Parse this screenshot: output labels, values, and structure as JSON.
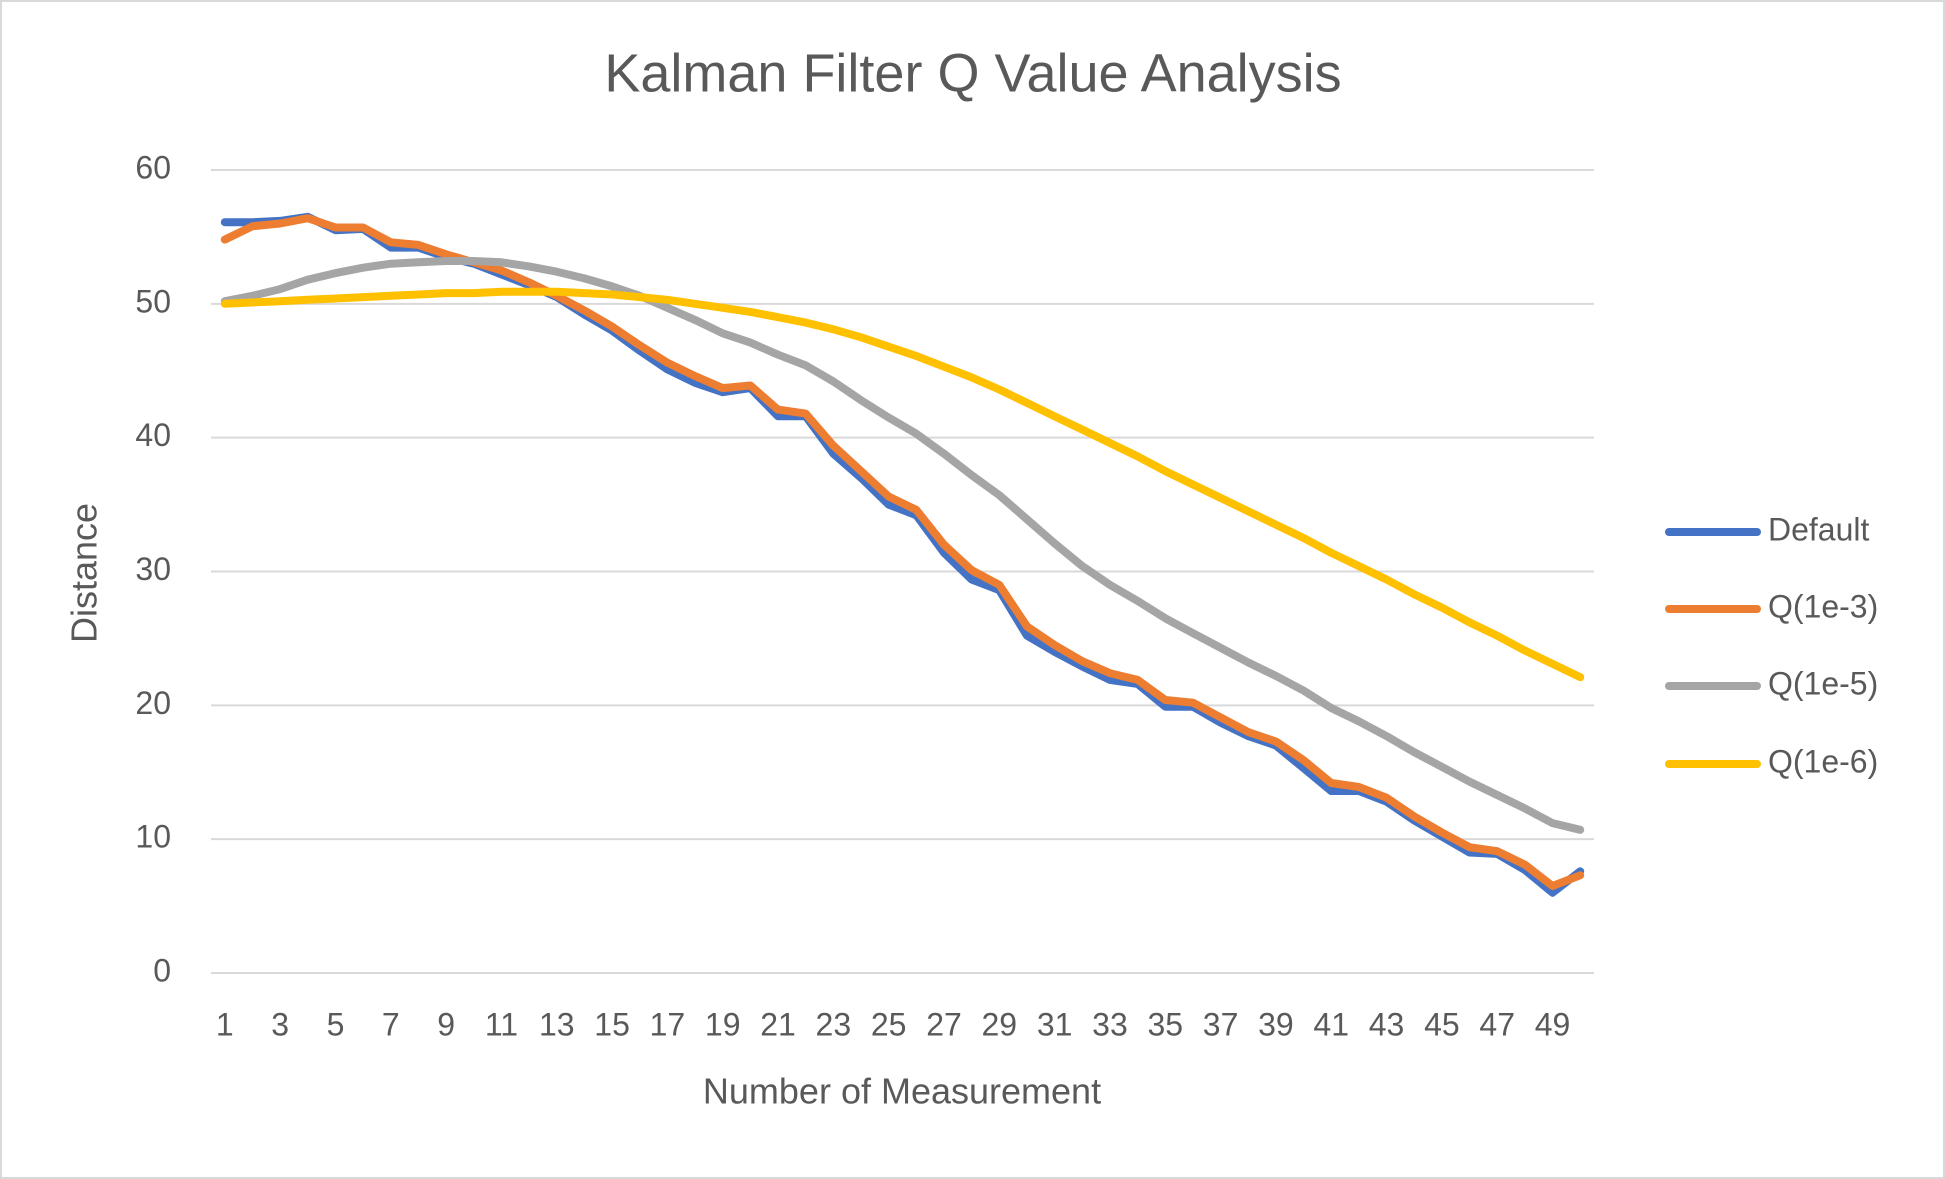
{
  "chart_data": {
    "type": "line",
    "title": "Kalman Filter Q Value Analysis",
    "x_label": "Number of Measurement",
    "y_label": "Distance",
    "categories": [
      1,
      null,
      3,
      null,
      5,
      null,
      7,
      null,
      9,
      null,
      11,
      null,
      13,
      null,
      15,
      null,
      17,
      null,
      19,
      null,
      21,
      null,
      23,
      null,
      25,
      null,
      27,
      null,
      29,
      null,
      31,
      null,
      33,
      null,
      35,
      null,
      37,
      null,
      39,
      null,
      41,
      null,
      43,
      null,
      45,
      null,
      47,
      null,
      49,
      null
    ],
    "ylim": [
      0,
      60
    ],
    "yticks": [
      0,
      10,
      20,
      30,
      40,
      50,
      60
    ],
    "grid": true,
    "legend": "right",
    "series": [
      {
        "name": "Default",
        "color": "#4472c4",
        "values": [
          56.1,
          56.1,
          56.2,
          56.5,
          55.5,
          55.6,
          54.2,
          54.2,
          53.5,
          53,
          52.2,
          51.4,
          50.5,
          49.2,
          48,
          46.5,
          45.1,
          44.1,
          43.4,
          43.7,
          41.6,
          41.6,
          38.8,
          37,
          35,
          34.2,
          31.4,
          29.4,
          28.6,
          25.2,
          24,
          22.9,
          21.9,
          21.6,
          19.9,
          19.9,
          18.7,
          17.7,
          17,
          15.3,
          13.6,
          13.6,
          12.8,
          11.4,
          10.2,
          9,
          8.9,
          7.7,
          6,
          7.6
        ]
      },
      {
        "name": "Q(1e-3)",
        "color": "#ed7d31",
        "values": [
          54.8,
          55.8,
          56,
          56.4,
          55.7,
          55.7,
          54.6,
          54.4,
          53.7,
          53.1,
          52.5,
          51.6,
          50.6,
          49.5,
          48.3,
          46.9,
          45.6,
          44.6,
          43.7,
          43.9,
          42.1,
          41.8,
          39.4,
          37.5,
          35.6,
          34.6,
          32,
          30.1,
          29,
          25.9,
          24.5,
          23.3,
          22.4,
          21.9,
          20.4,
          20.2,
          19.1,
          18,
          17.3,
          15.9,
          14.2,
          13.9,
          13.1,
          11.7,
          10.5,
          9.4,
          9.1,
          8.1,
          6.5,
          7.3
        ]
      },
      {
        "name": "Q(1e-5)",
        "color": "#a5a5a5",
        "values": [
          50.2,
          50.6,
          51.1,
          51.8,
          52.3,
          52.7,
          53,
          53.1,
          53.2,
          53.2,
          53.1,
          52.8,
          52.4,
          51.9,
          51.3,
          50.6,
          49.7,
          48.8,
          47.8,
          47.1,
          46.2,
          45.4,
          44.2,
          42.8,
          41.5,
          40.3,
          38.8,
          37.2,
          35.7,
          33.9,
          32.1,
          30.4,
          29,
          27.8,
          26.5,
          25.4,
          24.3,
          23.2,
          22.2,
          21.1,
          19.8,
          18.8,
          17.7,
          16.5,
          15.4,
          14.3,
          13.3,
          12.3,
          11.2,
          10.7
        ]
      },
      {
        "name": "Q(1e-6)",
        "color": "#ffc000",
        "values": [
          50,
          50.1,
          50.2,
          50.3,
          50.4,
          50.5,
          50.6,
          50.7,
          50.8,
          50.8,
          50.9,
          50.9,
          50.9,
          50.8,
          50.7,
          50.5,
          50.3,
          50,
          49.7,
          49.4,
          49,
          48.6,
          48.1,
          47.5,
          46.8,
          46.1,
          45.3,
          44.5,
          43.6,
          42.6,
          41.6,
          40.6,
          39.6,
          38.6,
          37.5,
          36.5,
          35.5,
          34.5,
          33.5,
          32.5,
          31.4,
          30.4,
          29.4,
          28.3,
          27.3,
          26.2,
          25.2,
          24.1,
          23.1,
          22.1
        ]
      }
    ]
  }
}
